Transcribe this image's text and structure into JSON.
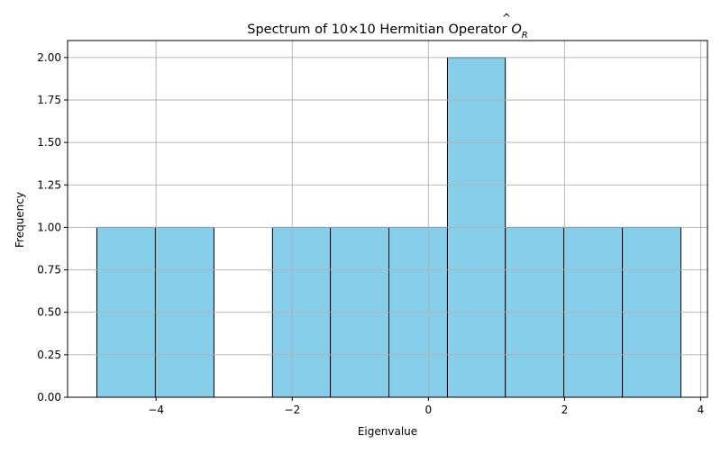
{
  "chart_data": {
    "type": "bar",
    "title": "Spectrum of 10×10 Hermitian Operator",
    "title_math": {
      "base": "O",
      "accent": "^",
      "subscript": "R"
    },
    "xlabel": "Eigenvalue",
    "ylabel": "Frequency",
    "xlim": [
      -5.3,
      4.1
    ],
    "ylim": [
      0.0,
      2.1
    ],
    "x_ticks": [
      -4,
      -2,
      0,
      2,
      4
    ],
    "x_tick_labels": [
      "−4",
      "−2",
      "0",
      "2",
      "4"
    ],
    "y_ticks": [
      0.0,
      0.25,
      0.5,
      0.75,
      1.0,
      1.25,
      1.5,
      1.75,
      2.0
    ],
    "y_tick_labels": [
      "0.00",
      "0.25",
      "0.50",
      "0.75",
      "1.00",
      "1.25",
      "1.50",
      "1.75",
      "2.00"
    ],
    "grid": true,
    "bins": [
      {
        "start": -4.87,
        "end": -4.01,
        "count": 1
      },
      {
        "start": -4.01,
        "end": -3.15,
        "count": 1
      },
      {
        "start": -3.15,
        "end": -2.29,
        "count": 0
      },
      {
        "start": -2.29,
        "end": -1.44,
        "count": 1
      },
      {
        "start": -1.44,
        "end": -0.58,
        "count": 1
      },
      {
        "start": -0.58,
        "end": 0.28,
        "count": 1
      },
      {
        "start": 0.28,
        "end": 1.13,
        "count": 2
      },
      {
        "start": 1.13,
        "end": 1.99,
        "count": 1
      },
      {
        "start": 1.99,
        "end": 2.85,
        "count": 1
      },
      {
        "start": 2.85,
        "end": 3.71,
        "count": 1
      }
    ],
    "colors": {
      "bar_fill": "#87ceeb",
      "bar_edge": "#000000",
      "grid": "#b0b0b0",
      "axis": "#000000"
    }
  }
}
